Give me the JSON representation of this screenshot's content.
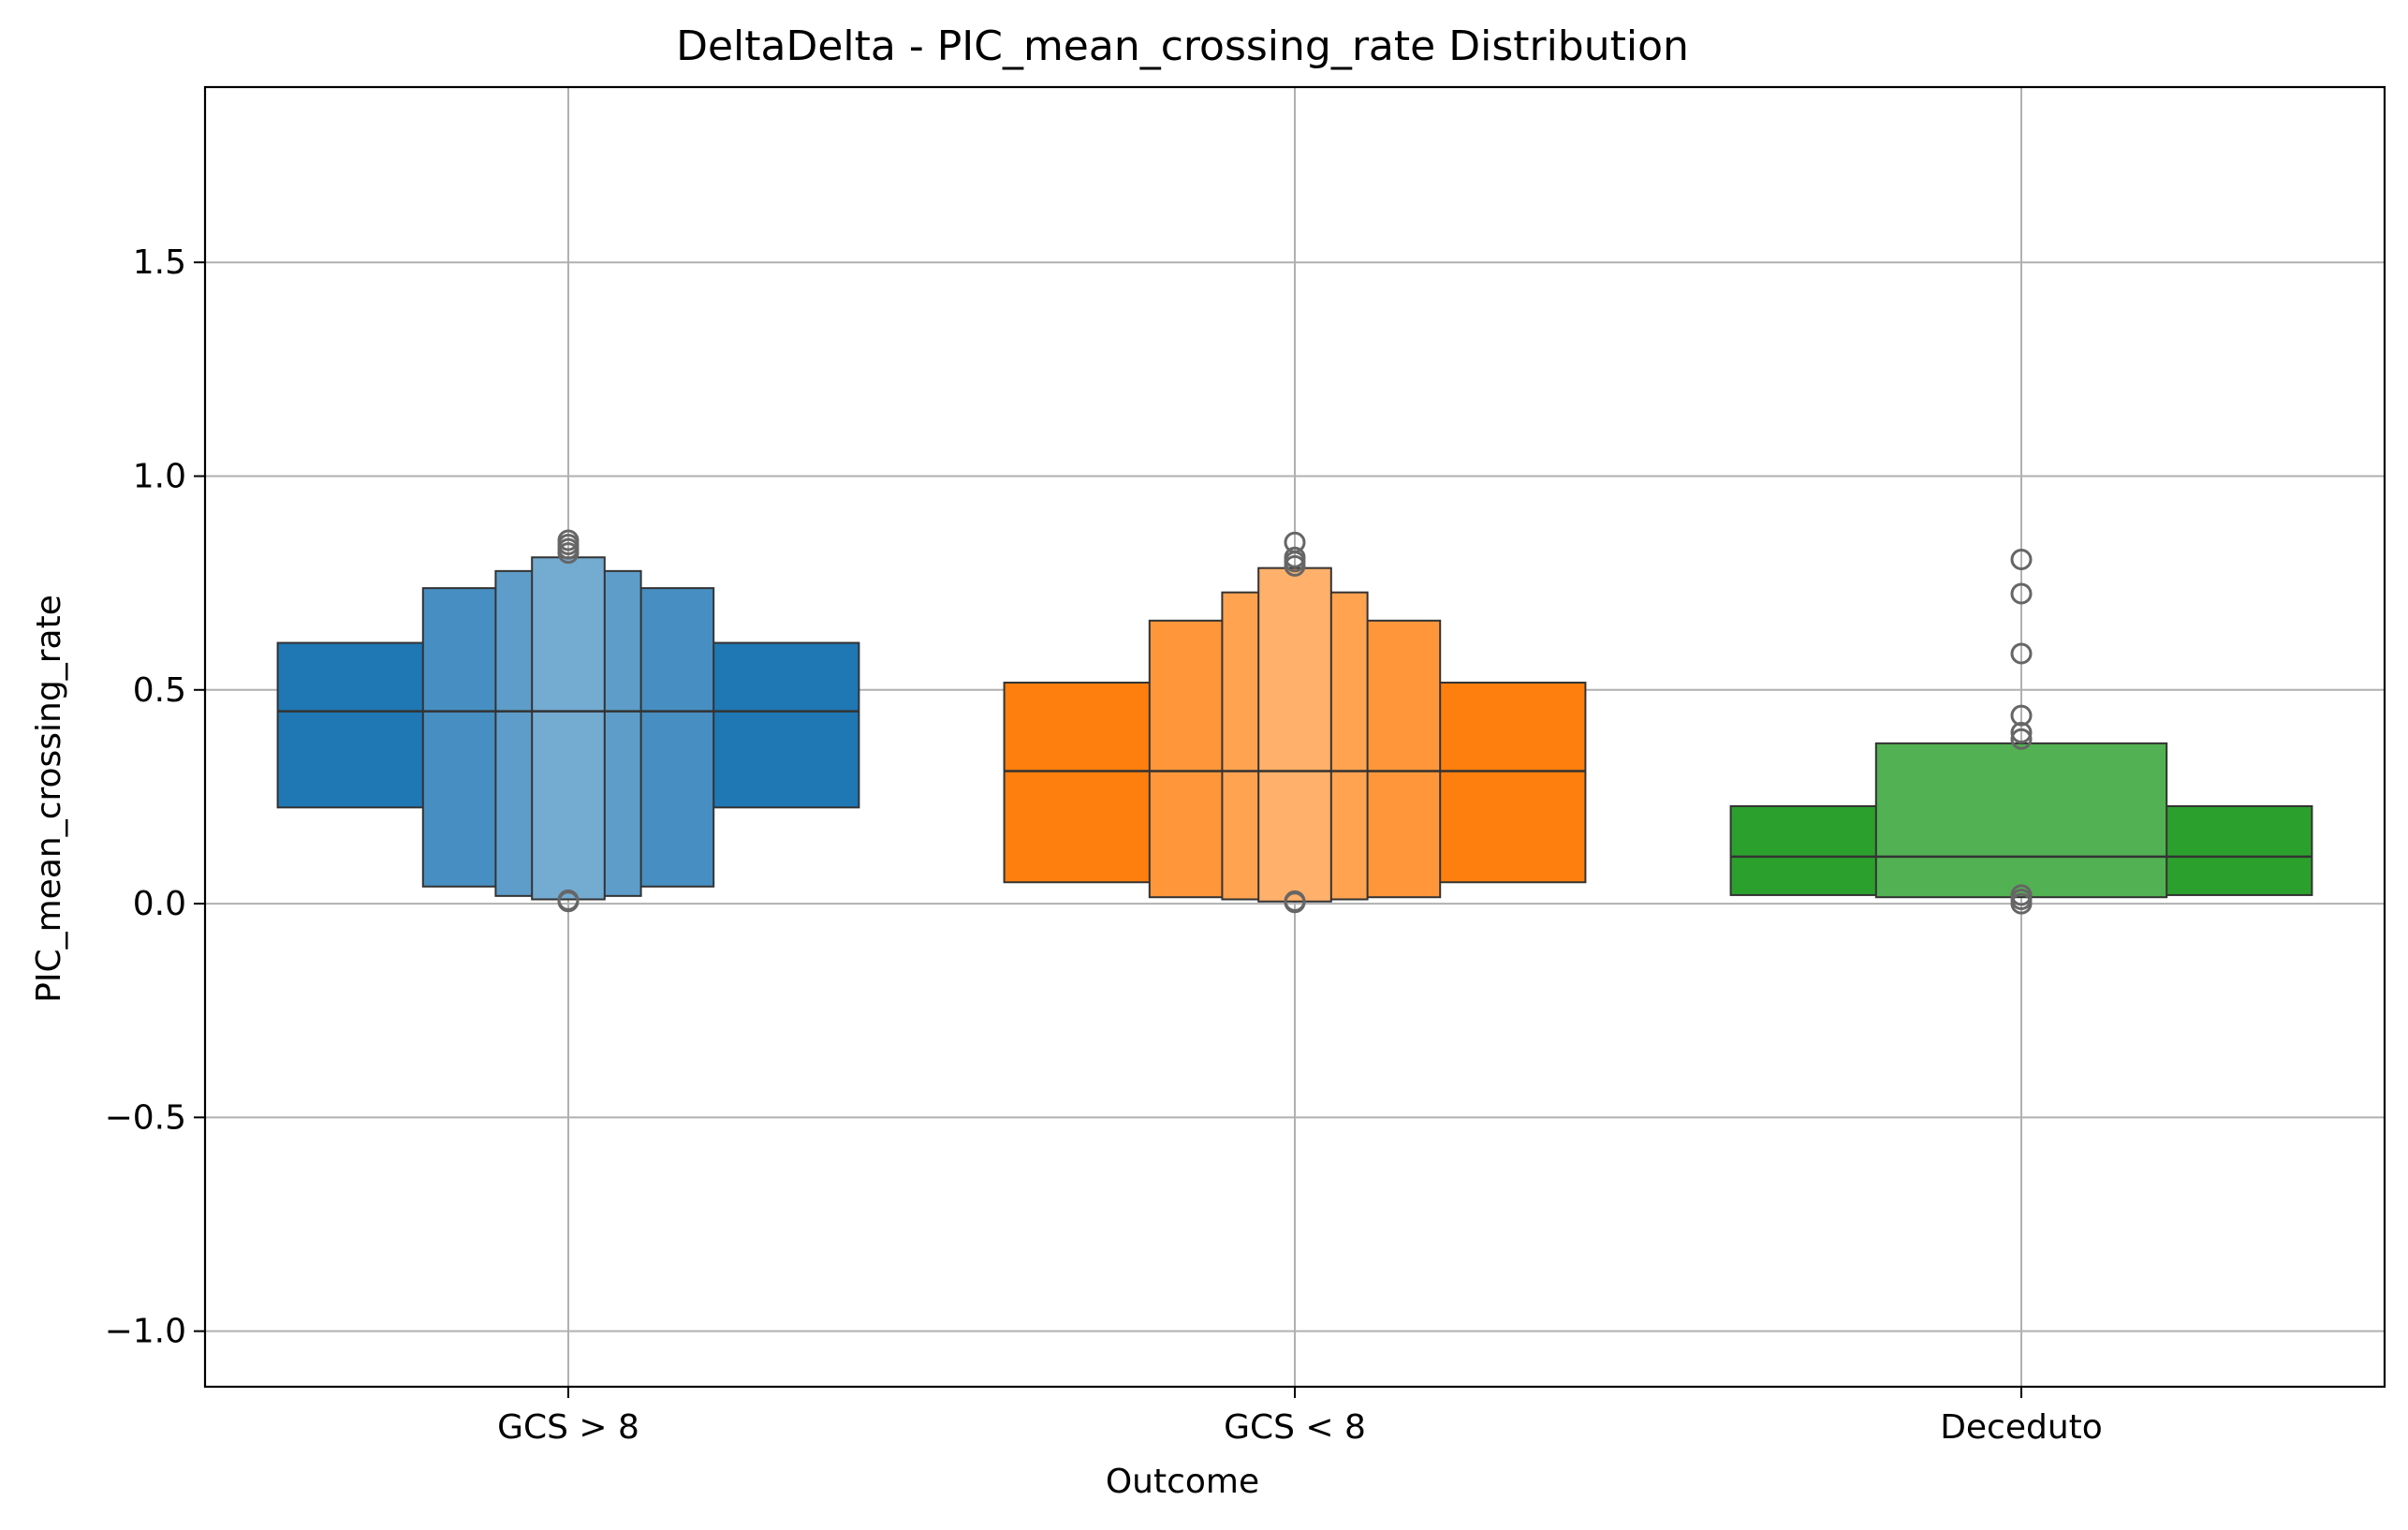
{
  "chart_data": {
    "type": "boxen",
    "title": "DeltaDelta - PIC_mean_crossing_rate Distribution",
    "xlabel": "Outcome",
    "ylabel": "PIC_mean_crossing_rate",
    "ylim": [
      -1.13,
      1.91
    ],
    "yticks": [
      -1.0,
      -0.5,
      0.0,
      0.5,
      1.0,
      1.5
    ],
    "ytick_labels": [
      "−1.0",
      "−0.5",
      "0.0",
      "0.5",
      "1.0",
      "1.5"
    ],
    "categories": [
      "GCS > 8",
      "GCS < 8",
      "Deceduto"
    ],
    "grid": true,
    "series": [
      {
        "color": "#1f77b4",
        "median": 0.45,
        "levels": [
          [
            0.225,
            0.61
          ],
          [
            0.04,
            0.738
          ],
          [
            0.018,
            0.778
          ],
          [
            0.01,
            0.81
          ]
        ],
        "outliers": [
          0.85,
          0.84,
          0.83,
          0.82,
          0.005,
          0.008
        ]
      },
      {
        "color": "#ff7f0e",
        "median": 0.31,
        "levels": [
          [
            0.05,
            0.517
          ],
          [
            0.015,
            0.662
          ],
          [
            0.01,
            0.728
          ],
          [
            0.005,
            0.785
          ]
        ],
        "outliers": [
          0.845,
          0.81,
          0.8,
          0.79,
          0.003,
          0.006
        ]
      },
      {
        "color": "#2ca02c",
        "median": 0.11,
        "levels": [
          [
            0.02,
            0.228
          ],
          [
            0.015,
            0.375
          ]
        ],
        "outliers": [
          0.805,
          0.725,
          0.585,
          0.44,
          0.4,
          0.385,
          0.02,
          0.01,
          0.0
        ]
      }
    ]
  }
}
